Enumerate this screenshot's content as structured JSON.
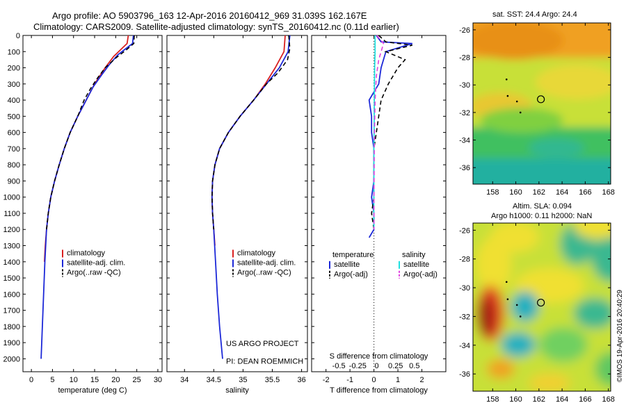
{
  "header": {
    "line1": "Argo profile: AO 5903796_163 12-Apr-2016 20160412_969 31.039S 162.167E",
    "line2": "Climatology: CARS2009. Satellite-adjusted climatology: synTS_20160412.nc (0.11d earlier)"
  },
  "right_panels": {
    "sst_title": "sat. SST: 24.4  Argo: 24.4",
    "sla_title1": "Altim. SLA: 0.094",
    "sla_title2": "Argo h1000: 0.11 h2000: NaN",
    "credit": "©IMOS 19-Apr-2016 20:40:29",
    "lat_ticks": [
      "-26",
      "-28",
      "-30",
      "-32",
      "-34",
      "-36"
    ],
    "lon_ticks": [
      "158",
      "160",
      "162",
      "164",
      "166",
      "168"
    ],
    "lat_values": [
      -26,
      -28,
      -30,
      -32,
      -34,
      -36
    ],
    "lon_values": [
      158,
      160,
      162,
      164,
      166,
      168
    ],
    "lat_range": [
      -37.2,
      -25.5
    ],
    "lon_range": [
      156.3,
      168.2
    ],
    "argo_position": {
      "lat": -31.039,
      "lon": 162.167
    }
  },
  "depth_ticks": [
    "0",
    "100",
    "200",
    "300",
    "400",
    "500",
    "600",
    "700",
    "800",
    "900",
    "1000",
    "1100",
    "1200",
    "1300",
    "1400",
    "1500",
    "1600",
    "1700",
    "1800",
    "1900",
    "2000"
  ],
  "colors": {
    "climatology": "#d92020",
    "satellite": "#1c28d8",
    "argo": "#000000",
    "sal_satellite": "#20e0e0",
    "sal_argo": "#e040e0"
  },
  "annotations": {
    "project": "US ARGO PROJECT",
    "pi": "PI: DEAN ROEMMICH"
  },
  "chart_data": [
    {
      "type": "line",
      "xlabel": "temperature (deg C)",
      "ylabel": "",
      "xlim": [
        -2,
        31
      ],
      "ylim": [
        0,
        2080
      ],
      "xticks": [
        0,
        5,
        10,
        15,
        20,
        25,
        30
      ],
      "xtick_labels": [
        "0",
        "5",
        "10",
        "15",
        "20",
        "25",
        "30"
      ],
      "legend": [
        "climatology",
        "satellite-adj. clim.",
        "Argo(..raw -QC)"
      ],
      "legend_placement": "lower-center",
      "series": [
        {
          "name": "climatology",
          "color": "#d92020",
          "points": [
            [
              23,
              0
            ],
            [
              22.7,
              50
            ],
            [
              21.5,
              80
            ],
            [
              19.5,
              130
            ],
            [
              17.5,
              200
            ],
            [
              15,
              300
            ],
            [
              13,
              400
            ],
            [
              11,
              500
            ],
            [
              9.2,
              600
            ],
            [
              7.8,
              700
            ],
            [
              6.6,
              800
            ],
            [
              5.5,
              900
            ],
            [
              4.6,
              1000
            ],
            [
              4,
              1100
            ],
            [
              3.6,
              1200
            ],
            [
              3.3,
              1300
            ],
            [
              3.1,
              1400
            ]
          ]
        },
        {
          "name": "satellite-adj. clim.",
          "color": "#1c28d8",
          "points": [
            [
              24.2,
              0
            ],
            [
              24,
              50
            ],
            [
              22,
              90
            ],
            [
              20.5,
              120
            ],
            [
              18.5,
              180
            ],
            [
              16.5,
              250
            ],
            [
              14.6,
              320
            ],
            [
              13,
              400
            ],
            [
              11,
              500
            ],
            [
              9.2,
              600
            ],
            [
              7.8,
              700
            ],
            [
              6.6,
              800
            ],
            [
              5.5,
              900
            ],
            [
              4.6,
              1000
            ],
            [
              4,
              1100
            ],
            [
              3.6,
              1200
            ],
            [
              3.2,
              1400
            ],
            [
              2.9,
              1600
            ],
            [
              2.6,
              1800
            ],
            [
              2.3,
              2000
            ]
          ]
        },
        {
          "name": "Argo(..raw -QC)",
          "color": "#000000",
          "dashed": true,
          "points": [
            [
              24.4,
              0
            ],
            [
              24.3,
              50
            ],
            [
              22.5,
              90
            ],
            [
              20,
              140
            ],
            [
              17.5,
              200
            ],
            [
              15.5,
              270
            ],
            [
              14,
              330
            ],
            [
              12.5,
              400
            ],
            [
              11,
              500
            ],
            [
              9.2,
              600
            ],
            [
              7.8,
              700
            ],
            [
              6.6,
              800
            ],
            [
              5.5,
              900
            ],
            [
              4.6,
              1000
            ],
            [
              4,
              1100
            ],
            [
              3.6,
              1200
            ]
          ]
        }
      ]
    },
    {
      "type": "line",
      "xlabel": "salinity",
      "ylabel": "",
      "xlim": [
        33.7,
        36.1
      ],
      "ylim": [
        0,
        2080
      ],
      "xticks": [
        34,
        34.5,
        35,
        35.5,
        36
      ],
      "xtick_labels": [
        "34",
        "34.5",
        "35",
        "35.5",
        "36"
      ],
      "legend": [
        "climatology",
        "satellite-adj. clim.",
        "Argo(..raw -QC)"
      ],
      "legend_placement": "lower-right",
      "series": [
        {
          "name": "climatology",
          "color": "#d92020",
          "points": [
            [
              35.72,
              0
            ],
            [
              35.7,
              100
            ],
            [
              35.55,
              200
            ],
            [
              35.38,
              300
            ],
            [
              35.18,
              400
            ],
            [
              34.95,
              500
            ],
            [
              34.75,
              600
            ],
            [
              34.6,
              700
            ],
            [
              34.52,
              800
            ],
            [
              34.48,
              900
            ],
            [
              34.47,
              1000
            ],
            [
              34.48,
              1100
            ],
            [
              34.5,
              1200
            ],
            [
              34.52,
              1300
            ]
          ]
        },
        {
          "name": "satellite-adj. clim.",
          "color": "#1c28d8",
          "points": [
            [
              35.8,
              0
            ],
            [
              35.77,
              100
            ],
            [
              35.62,
              200
            ],
            [
              35.4,
              300
            ],
            [
              35.18,
              400
            ],
            [
              34.95,
              500
            ],
            [
              34.75,
              600
            ],
            [
              34.6,
              700
            ],
            [
              34.52,
              800
            ],
            [
              34.48,
              900
            ],
            [
              34.47,
              1000
            ],
            [
              34.48,
              1100
            ],
            [
              34.5,
              1200
            ],
            [
              34.53,
              1400
            ],
            [
              34.56,
              1600
            ],
            [
              34.6,
              1800
            ],
            [
              34.65,
              2000
            ]
          ]
        },
        {
          "name": "Argo(..raw -QC)",
          "color": "#000000",
          "dashed": true,
          "points": [
            [
              35.78,
              0
            ],
            [
              35.8,
              80
            ],
            [
              35.76,
              150
            ],
            [
              35.6,
              230
            ],
            [
              35.4,
              300
            ],
            [
              35.18,
              400
            ],
            [
              34.95,
              500
            ],
            [
              34.75,
              600
            ],
            [
              34.6,
              700
            ],
            [
              34.52,
              800
            ],
            [
              34.48,
              900
            ],
            [
              34.47,
              1000
            ],
            [
              34.48,
              1100
            ],
            [
              34.5,
              1200
            ]
          ]
        }
      ]
    },
    {
      "type": "line",
      "xlabel": "T difference from climatology",
      "xlabel2": "S difference from climatology",
      "ylabel": "",
      "xlim": [
        -2.6,
        3.0
      ],
      "ylim": [
        0,
        2080
      ],
      "xticks": [
        -2,
        -1,
        0,
        1,
        2
      ],
      "xtick_labels": [
        "-2",
        "-1",
        "0",
        "1",
        "2"
      ],
      "top_ticks": [
        -0.5,
        -0.25,
        0,
        0.25,
        0.5
      ],
      "top_tick_labels": [
        "-0.5",
        "-0.25",
        "0",
        "0.25",
        "0.5"
      ],
      "legend_headers": [
        "temperature",
        "salinity"
      ],
      "legend": [
        "satellite",
        "Argo(-adj)",
        "satellite",
        "Argo(-adj)"
      ],
      "legend_placement": "lower",
      "series": [
        {
          "name": "satellite",
          "color": "#1c28d8",
          "points": [
            [
              0.1,
              0
            ],
            [
              0.3,
              40
            ],
            [
              1.6,
              50
            ],
            [
              0.5,
              100
            ],
            [
              0.3,
              200
            ],
            [
              0.2,
              300
            ],
            [
              -0.2,
              400
            ],
            [
              -0.1,
              500
            ],
            [
              -0.1,
              600
            ],
            [
              0,
              700
            ],
            [
              0,
              800
            ],
            [
              0,
              900
            ],
            [
              -0.1,
              1000
            ],
            [
              0,
              1100
            ],
            [
              0,
              1200
            ],
            [
              -0.2,
              1250
            ]
          ]
        },
        {
          "name": "Argo(-adj)",
          "color": "#000000",
          "dashed": true,
          "points": [
            [
              0.2,
              0
            ],
            [
              0.5,
              40
            ],
            [
              1.6,
              60
            ],
            [
              0.5,
              100
            ],
            [
              1.3,
              150
            ],
            [
              1,
              200
            ],
            [
              0.6,
              300
            ],
            [
              0.3,
              400
            ],
            [
              0.2,
              500
            ],
            [
              0.1,
              600
            ],
            [
              0,
              700
            ],
            [
              0,
              800
            ],
            [
              0,
              900
            ],
            [
              0,
              1000
            ],
            [
              -0.1,
              1100
            ],
            [
              0,
              1200
            ]
          ]
        },
        {
          "name": "satellite",
          "color": "#20e0e0",
          "points": [
            [
              0.05,
              0
            ],
            [
              0.05,
              100
            ],
            [
              0.03,
              200
            ],
            [
              0.02,
              300
            ],
            [
              0.01,
              500
            ],
            [
              0,
              700
            ],
            [
              0,
              900
            ],
            [
              -0.01,
              1100
            ],
            [
              0,
              1200
            ]
          ]
        },
        {
          "name": "Argo(-adj)",
          "color": "#e040e0",
          "dashed": true,
          "points": [
            [
              0.12,
              0
            ],
            [
              0.4,
              50
            ],
            [
              0.2,
              150
            ],
            [
              0.1,
              250
            ],
            [
              0.05,
              400
            ],
            [
              0.02,
              600
            ],
            [
              0.01,
              800
            ],
            [
              0,
              1000
            ],
            [
              0,
              1200
            ]
          ]
        }
      ]
    }
  ]
}
